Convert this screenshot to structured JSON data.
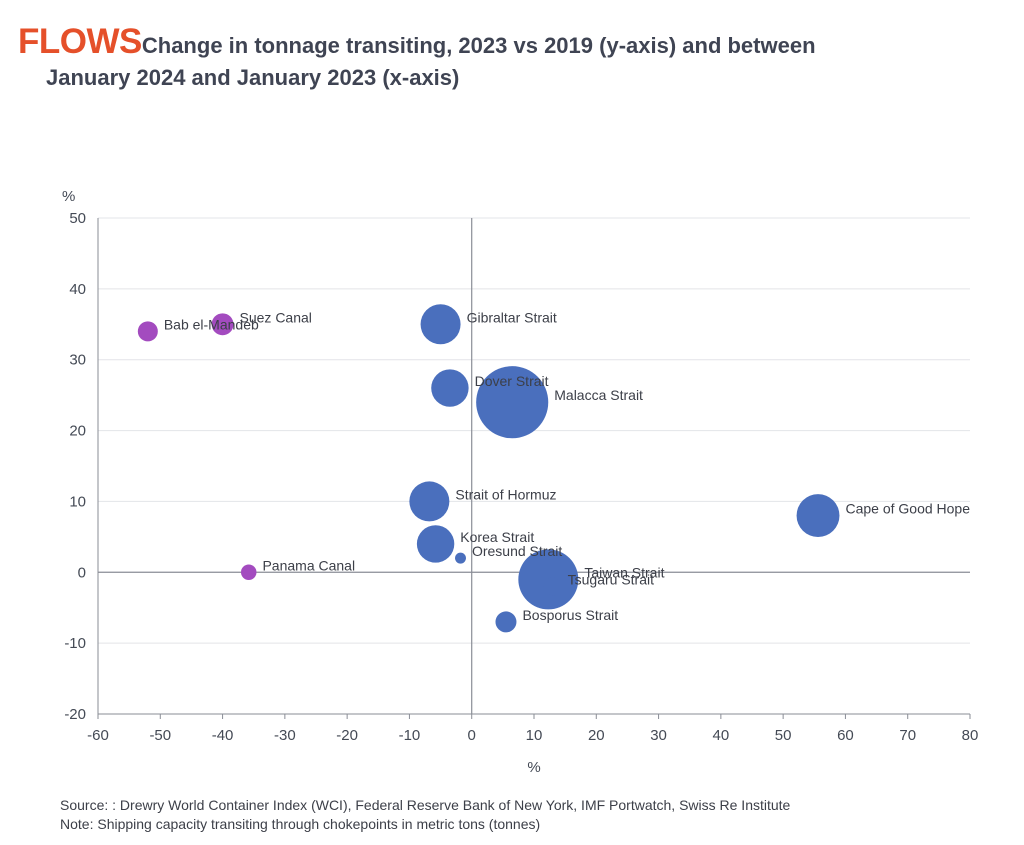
{
  "header": {
    "brand": "FLOWS",
    "title_line1": "Change in tonnage transiting, 2023 vs 2019 (y-axis) and between",
    "title_line2": "January 2024 and January 2023 (x-axis)"
  },
  "footer": {
    "source": "Source: : Drewry World Container Index (WCI), Federal Reserve Bank of New York, IMF Portwatch, Swiss Re Institute",
    "note": "Note: Shipping capacity transiting through chokepoints in metric tons (tonnes)"
  },
  "colors": {
    "blue": "#4a6fbd",
    "purple": "#a34bbf",
    "brand_red": "#e5502a",
    "grid": "#e3e4e8",
    "axis": "#8a8d96"
  },
  "chart_data": {
    "type": "scatter",
    "title": "Change in tonnage transiting, 2023 vs 2019 (y-axis) and between January 2024 and January 2023 (x-axis)",
    "xlabel": "%",
    "ylabel": "%",
    "xlim": [
      -60,
      80
    ],
    "ylim": [
      -20,
      50
    ],
    "x_ticks": [
      -60,
      -50,
      -40,
      -30,
      -20,
      -10,
      0,
      10,
      20,
      30,
      40,
      50,
      60,
      70,
      80
    ],
    "y_ticks": [
      -20,
      -10,
      0,
      10,
      20,
      30,
      40,
      50
    ],
    "grid": "horizontal",
    "bubble_size": "relative tonnage (bubble area)",
    "points": [
      {
        "name": "Bab el-Mandeb",
        "x": -52,
        "y": 34,
        "size": 1,
        "group": "purple"
      },
      {
        "name": "Suez Canal",
        "x": -40,
        "y": 35,
        "size": 1.2,
        "group": "purple"
      },
      {
        "name": "Panama Canal",
        "x": -35.8,
        "y": 0,
        "size": 0.6,
        "group": "purple"
      },
      {
        "name": "Gibraltar Strait",
        "x": -5,
        "y": 35,
        "size": 4,
        "group": "blue"
      },
      {
        "name": "Dover Strait",
        "x": -3.5,
        "y": 26,
        "size": 3.5,
        "group": "blue"
      },
      {
        "name": "Malacca Strait",
        "x": 6.5,
        "y": 24,
        "size": 13,
        "group": "blue"
      },
      {
        "name": "Strait of Hormuz",
        "x": -6.8,
        "y": 10,
        "size": 4,
        "group": "blue"
      },
      {
        "name": "Korea Strait",
        "x": -5.8,
        "y": 4,
        "size": 3.5,
        "group": "blue"
      },
      {
        "name": "Oresund Strait",
        "x": -1.8,
        "y": 2,
        "size": 0.3,
        "group": "blue"
      },
      {
        "name": "Taiwan Strait",
        "x": 12.3,
        "y": -1,
        "size": 9,
        "group": "blue"
      },
      {
        "name": "Tsugaru Strait",
        "x": 13,
        "y": -2,
        "size": 0.8,
        "group": "blue"
      },
      {
        "name": "Bosporus Strait",
        "x": 5.5,
        "y": -7,
        "size": 1.1,
        "group": "blue"
      },
      {
        "name": "Cape of Good Hope",
        "x": 55.6,
        "y": 8,
        "size": 4.6,
        "group": "blue"
      }
    ]
  }
}
